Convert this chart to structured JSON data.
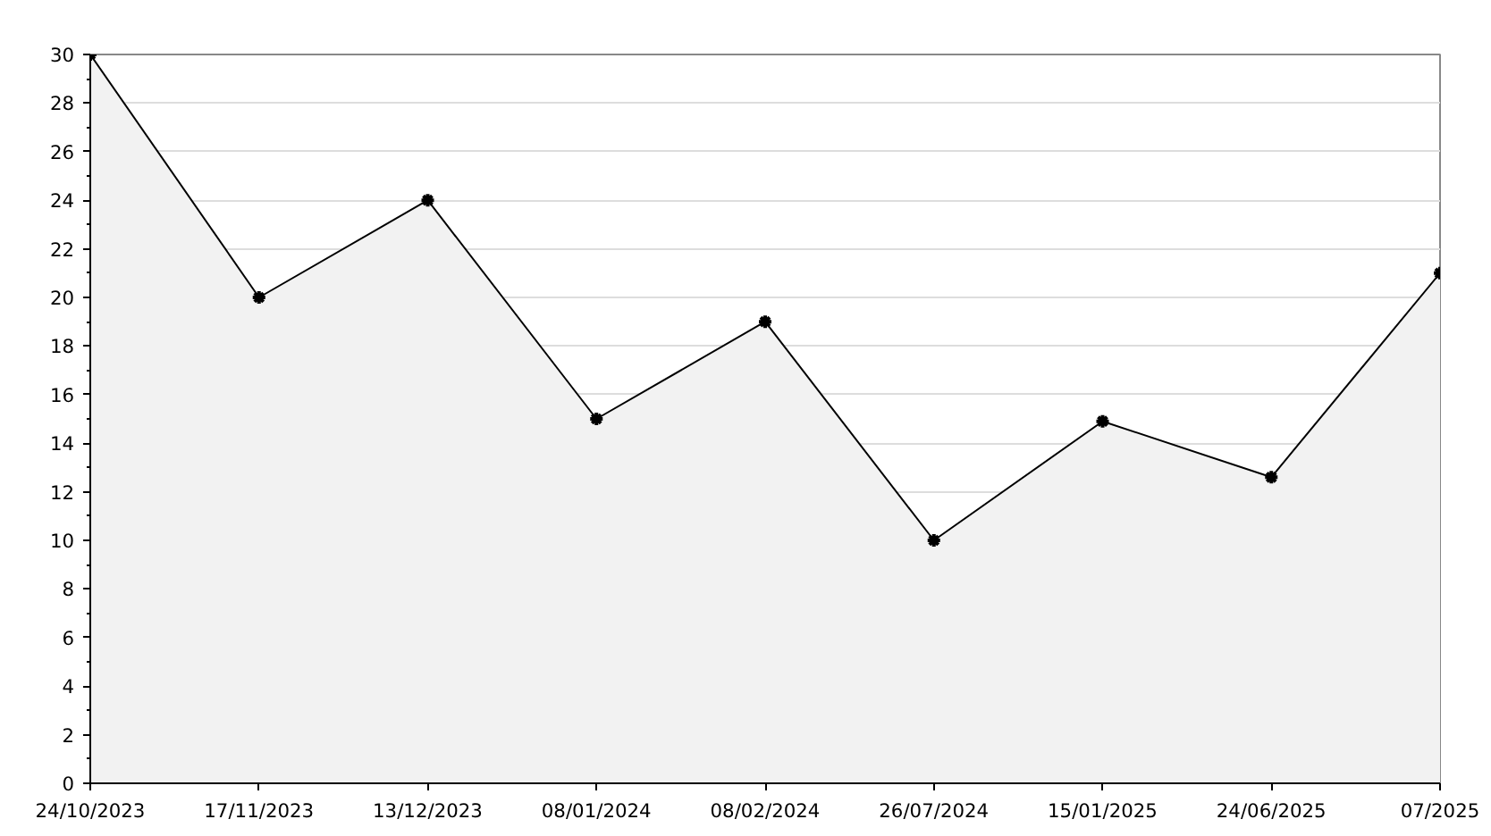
{
  "chart_data": {
    "type": "area",
    "categories": [
      "24/10/2023",
      "17/11/2023",
      "13/12/2023",
      "08/01/2024",
      "08/02/2024",
      "26/07/2024",
      "15/01/2025",
      "24/06/2025",
      "07/2025"
    ],
    "series": [
      {
        "color": "#000000",
        "values": [
          30,
          20,
          24,
          15,
          19,
          10,
          14.9,
          12.6,
          21
        ]
      }
    ],
    "ylim": [
      0,
      30
    ],
    "yticks": [
      0,
      2,
      4,
      6,
      8,
      10,
      12,
      14,
      16,
      18,
      20,
      22,
      24,
      26,
      28,
      30
    ],
    "grid": "y",
    "marker": "cross",
    "line_style": "solid"
  }
}
